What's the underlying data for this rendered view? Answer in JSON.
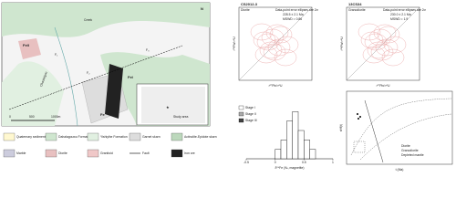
{
  "map": {
    "labels": {
      "fe2": "FeII",
      "fe1": "FeI",
      "fe": "Fe",
      "creek_a": "Chaotaigou",
      "creek_b": "Creek",
      "f1": "F₁",
      "f2": "F₂",
      "f3": "F₃",
      "north": "N",
      "star_label": "Study area"
    },
    "scale": [
      "0",
      "500",
      "1000m"
    ]
  },
  "legend": [
    "Quaternary sediments",
    "Dahalagouwu Formation",
    "Yishiyihe Formation",
    "Garnet skarn",
    "Actinolite-Epidote skarn",
    "Marble",
    "Diorite",
    "Granitoid",
    "Fault",
    "Iron ore"
  ],
  "concordia": [
    {
      "sample": "CS2012-3",
      "rock": "Diorite",
      "note": "Data-point error ellipses are 2σ",
      "age": "228.5 ± 2.1 Ma",
      "mswd": "MSWD = 0.86"
    },
    {
      "sample": "13CS34",
      "rock": "Granodiorite",
      "note": "Data-point error ellipses are 2σ",
      "age": "230.0 ± 2.1 Ma",
      "mswd": "MSWD = 1.9"
    }
  ],
  "concordia_axes": {
    "x": "²⁰⁷Pb/²³⁵U",
    "y": "²⁰⁶Pb/²³⁸U"
  },
  "histogram": {
    "x_label": "δ⁵⁶Fe (‰, magnetite)",
    "stages": [
      "Stage I",
      "Stage II",
      "Stage III"
    ],
    "bins": [
      0,
      0.1,
      0.2,
      0.3,
      0.4,
      0.5,
      0.6,
      0.7
    ],
    "counts": [
      1,
      2,
      4,
      5,
      3,
      2,
      1
    ],
    "xlim": [
      -0.5,
      1
    ],
    "xticks": [
      -0.5,
      0,
      0.5,
      1
    ],
    "ylim": [
      0,
      6
    ]
  },
  "isotope_plot": {
    "x_label": "t (Ma)",
    "y_label": "εHf(t)",
    "legend": [
      "Diorite",
      "Granodiorite",
      "Depleted mantle"
    ]
  }
}
